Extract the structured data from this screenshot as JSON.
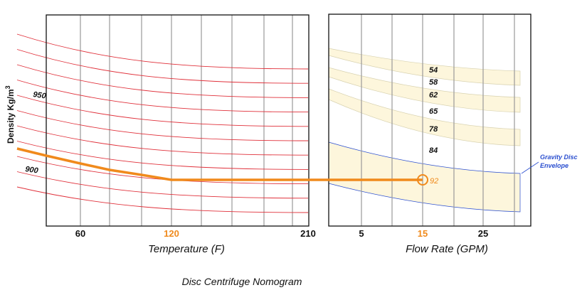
{
  "title": "Disc Centrifuge Nomogram",
  "left_panel": {
    "xlabel": "Temperature (F)",
    "ylabel": "Density Kg/m",
    "ylabel_superscript": "3",
    "x_ticks": [
      "60",
      "120",
      "210"
    ],
    "highlight_tick": "120",
    "curve_labels": [
      "950",
      "900"
    ],
    "curve_count": 11
  },
  "right_panel": {
    "xlabel": "Flow Rate (GPM)",
    "x_ticks": [
      "5",
      "15",
      "25"
    ],
    "highlight_tick": "15",
    "band_labels": [
      "54",
      "58",
      "62",
      "65",
      "78",
      "84"
    ],
    "selected_value": "92",
    "envelope_label_line1": "Gravity Disc",
    "envelope_label_line2": "Envelope"
  },
  "colors": {
    "curve": "#e0303a",
    "highlight": "#f08a1c",
    "grid": "#9a9a9a",
    "band_fill": "#fdf6dc",
    "envelope": "#2a4ecf"
  }
}
